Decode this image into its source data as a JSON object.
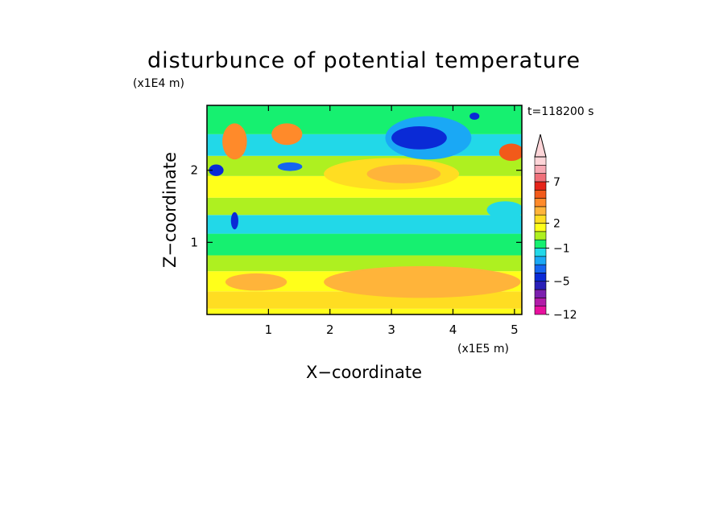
{
  "chart_data": {
    "type": "heatmap",
    "title": "disturbunce of potential temperature",
    "time_label": "t=118200 s",
    "xlabel": "X−coordinate",
    "ylabel": "Z−coordinate",
    "x_scale_label": "(x1E5 m)",
    "y_scale_label": "(x1E4 m)",
    "xlim": [
      0,
      5.12
    ],
    "ylim": [
      0,
      2.9
    ],
    "x_ticks": [
      "1",
      "2",
      "3",
      "4",
      "5"
    ],
    "y_ticks": [
      "1",
      "2"
    ],
    "x_tick_values": [
      1,
      2,
      3,
      4,
      5
    ],
    "y_tick_values": [
      1,
      2
    ],
    "colorbar": {
      "levels": [
        -12,
        -11,
        -9,
        -7,
        -5,
        -4,
        -3,
        -2,
        -1,
        0,
        1,
        2,
        3,
        4,
        5,
        6,
        7,
        8,
        9,
        10
      ],
      "colors": [
        "#e8109e",
        "#b21ca8",
        "#7c1fae",
        "#2a1fb8",
        "#0a2ad6",
        "#1565f0",
        "#1aa8f5",
        "#22d8e8",
        "#16f070",
        "#aef020",
        "#ffff1a",
        "#ffdd22",
        "#ffb43a",
        "#ff8a2a",
        "#f25a1a",
        "#e6241a",
        "#f0707a",
        "#f7a9b3",
        "#fdd5d8"
      ],
      "tick_labels": [
        "7",
        "2",
        "−1",
        "−5",
        "−12"
      ],
      "tick_values": [
        7,
        2,
        -1,
        -5,
        -12
      ],
      "extend": "max"
    },
    "bands": [
      {
        "z": [
          0.0,
          0.08
        ],
        "level": 1
      },
      {
        "z": [
          0.08,
          0.32
        ],
        "level": 2
      },
      {
        "z": [
          0.32,
          0.6
        ],
        "level": 1
      },
      {
        "z": [
          0.6,
          0.82
        ],
        "level": 0
      },
      {
        "z": [
          0.82,
          1.12
        ],
        "level": -0.5
      },
      {
        "z": [
          1.12,
          1.38
        ],
        "level": -1.5
      },
      {
        "z": [
          1.38,
          1.62
        ],
        "level": 0.5
      },
      {
        "z": [
          1.62,
          1.92
        ],
        "level": 1.5
      },
      {
        "z": [
          1.92,
          2.2
        ],
        "level": 0
      },
      {
        "z": [
          2.2,
          2.5
        ],
        "level": -1.5
      },
      {
        "z": [
          2.5,
          2.9
        ],
        "level": -0.5
      }
    ],
    "features": [
      {
        "x": 3.45,
        "z": 2.45,
        "rx": 0.45,
        "rz": 0.16,
        "level": -5
      },
      {
        "x": 3.6,
        "z": 2.45,
        "rx": 0.7,
        "rz": 0.3,
        "level": -2.5
      },
      {
        "x": 3.2,
        "z": 1.95,
        "rx": 0.6,
        "rz": 0.13,
        "level": 3
      },
      {
        "x": 3.0,
        "z": 1.95,
        "rx": 1.1,
        "rz": 0.22,
        "level": 2
      },
      {
        "x": 0.8,
        "z": 0.45,
        "rx": 0.5,
        "rz": 0.12,
        "level": 3
      },
      {
        "x": 3.5,
        "z": 0.45,
        "rx": 1.6,
        "rz": 0.22,
        "level": 3
      },
      {
        "x": 4.95,
        "z": 2.25,
        "rx": 0.2,
        "rz": 0.12,
        "level": 5
      },
      {
        "x": 1.3,
        "z": 2.5,
        "rx": 0.25,
        "rz": 0.15,
        "level": 4
      },
      {
        "x": 0.15,
        "z": 2.0,
        "rx": 0.12,
        "rz": 0.08,
        "level": -5
      },
      {
        "x": 0.45,
        "z": 2.4,
        "rx": 0.2,
        "rz": 0.25,
        "level": 4
      },
      {
        "x": 0.45,
        "z": 1.3,
        "rx": 0.06,
        "rz": 0.12,
        "level": -5
      },
      {
        "x": 4.35,
        "z": 2.75,
        "rx": 0.08,
        "rz": 0.05,
        "level": -5
      },
      {
        "x": 1.35,
        "z": 2.05,
        "rx": 0.2,
        "rz": 0.06,
        "level": -4
      },
      {
        "x": 4.85,
        "z": 1.45,
        "rx": 0.3,
        "rz": 0.12,
        "level": -2
      }
    ]
  }
}
